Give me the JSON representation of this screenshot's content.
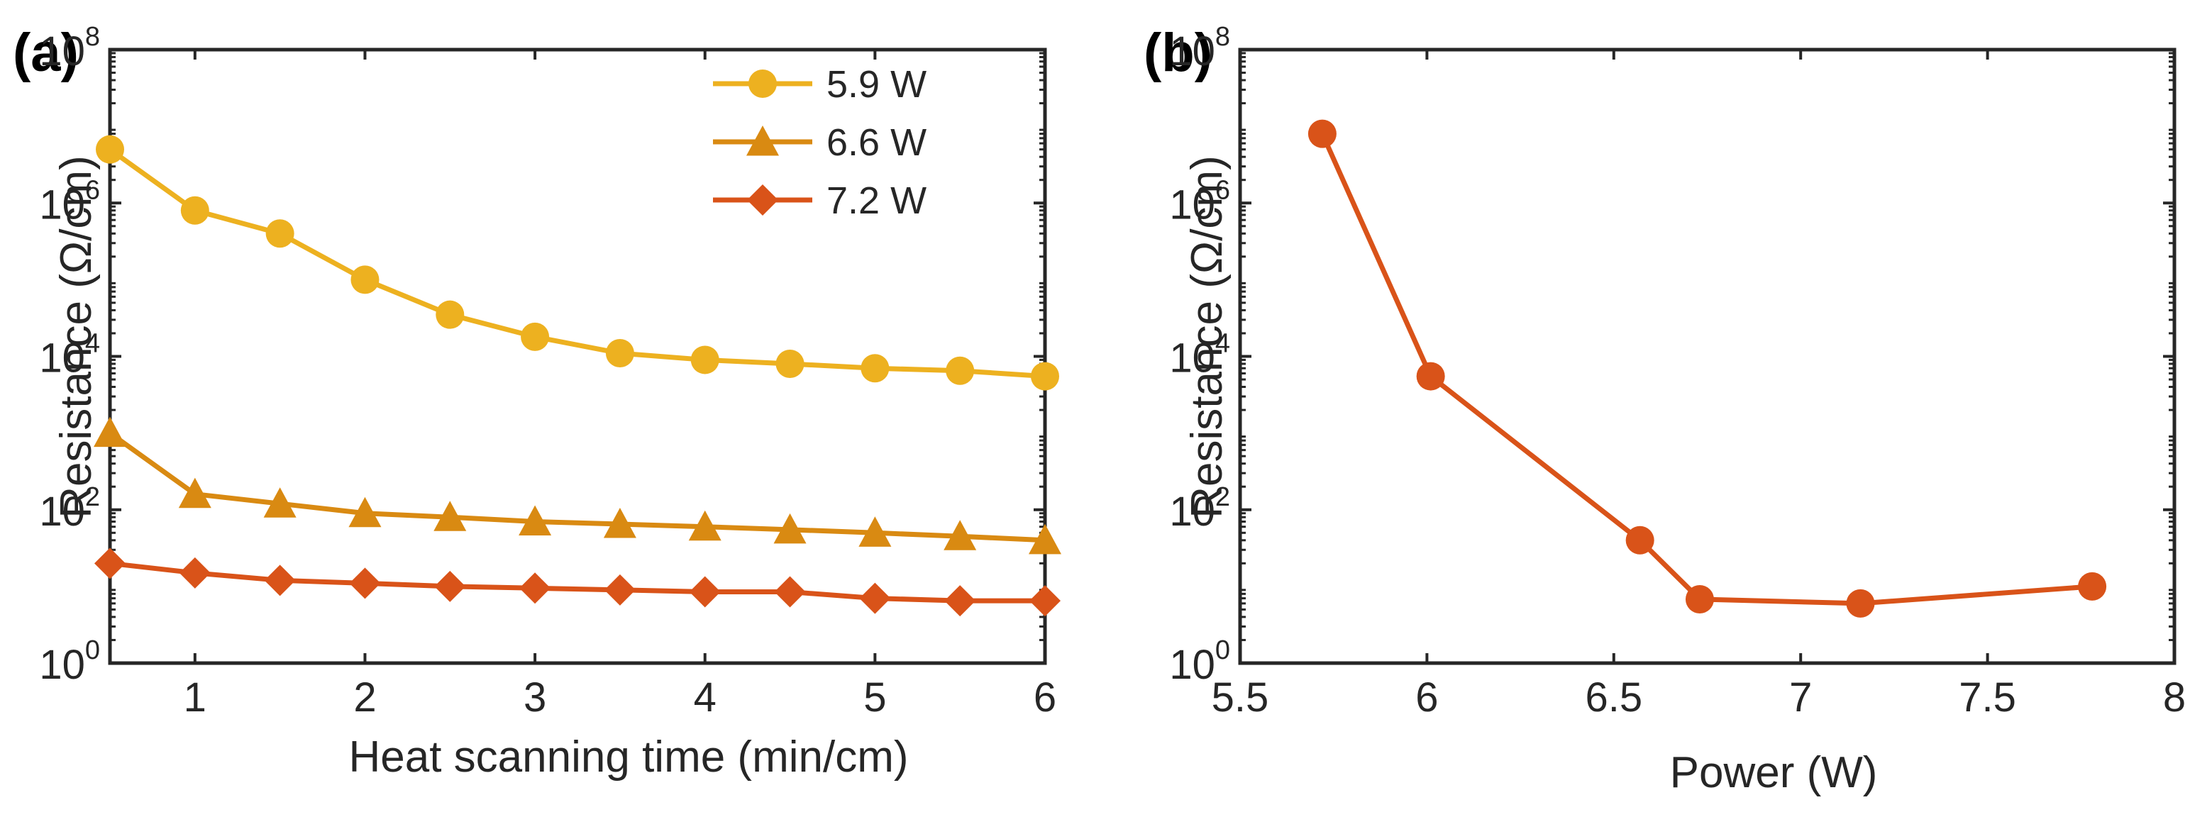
{
  "chart_data": [
    {
      "panel": "(a)",
      "type": "line",
      "xlabel": "Heat scanning time (min/cm)",
      "ylabel": "Resistance (Ω/cm)",
      "xlim": [
        0.5,
        6
      ],
      "ylim": [
        1,
        100000000
      ],
      "yscale": "log",
      "xticks": [
        1,
        2,
        3,
        4,
        5,
        6
      ],
      "yticks": [
        {
          "base": "10",
          "exp": "0",
          "value": 1
        },
        {
          "base": "10",
          "exp": "2",
          "value": 100
        },
        {
          "base": "10",
          "exp": "4",
          "value": 10000
        },
        {
          "base": "10",
          "exp": "6",
          "value": 1000000
        },
        {
          "base": "10",
          "exp": "8",
          "value": 100000000
        }
      ],
      "legend_position": "top-right",
      "x": [
        0.5,
        1,
        1.5,
        2,
        2.5,
        3,
        3.5,
        4,
        4.5,
        5,
        5.5,
        6
      ],
      "series": [
        {
          "name": "5.9 W",
          "color": "#EDB120",
          "marker": "circle",
          "values": [
            5000000,
            800000,
            400000,
            100000,
            35000,
            18000,
            11000,
            9000,
            8000,
            7000,
            6500,
            5500
          ]
        },
        {
          "name": "6.6 W",
          "color": "#D98A12",
          "marker": "triangle",
          "values": [
            1000,
            160,
            120,
            90,
            80,
            70,
            65,
            60,
            55,
            50,
            45,
            40
          ]
        },
        {
          "name": "7.2 W",
          "color": "#D95319",
          "marker": "diamond",
          "values": [
            20,
            15,
            12,
            11,
            10,
            9.5,
            9,
            8.5,
            8.5,
            7,
            6.5,
            6.5
          ]
        }
      ]
    },
    {
      "panel": "(b)",
      "type": "line",
      "xlabel": "Power (W)",
      "ylabel": "Resistance (Ω/cm)",
      "xlim": [
        5.5,
        8
      ],
      "ylim": [
        1,
        100000000
      ],
      "yscale": "log",
      "xticks": [
        5.5,
        6,
        6.5,
        7,
        7.5,
        8
      ],
      "xtick_labels": [
        "5.5",
        "6",
        "6.5",
        "7",
        "7.5",
        "8"
      ],
      "yticks": [
        {
          "base": "10",
          "exp": "0",
          "value": 1
        },
        {
          "base": "10",
          "exp": "2",
          "value": 100
        },
        {
          "base": "10",
          "exp": "4",
          "value": 10000
        },
        {
          "base": "10",
          "exp": "6",
          "value": 1000000
        },
        {
          "base": "10",
          "exp": "8",
          "value": 100000000
        }
      ],
      "series": [
        {
          "name": "Resistance",
          "color": "#D95319",
          "marker": "circle",
          "x": [
            5.72,
            6.01,
            6.57,
            6.73,
            7.16,
            7.78
          ],
          "values": [
            8000000,
            5500,
            40,
            6.8,
            6.0,
            10
          ]
        }
      ]
    }
  ]
}
